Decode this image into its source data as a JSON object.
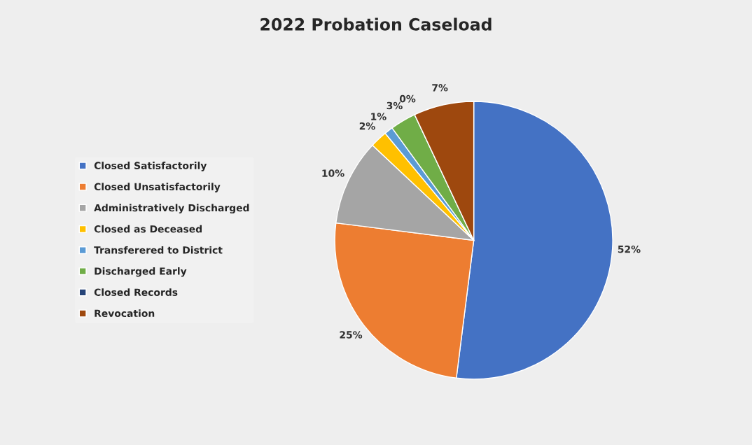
{
  "chart_data": {
    "type": "pie",
    "title": "2022 Probation Caseload",
    "categories": [
      "Closed Satisfactorily",
      "Closed Unsatisfactorily",
      "Administratively Discharged",
      "Closed as Deceased",
      "Transferered to District",
      "Discharged Early",
      "Closed Records",
      "Revocation"
    ],
    "values": [
      52,
      25,
      10,
      2,
      1,
      3,
      0,
      7
    ],
    "value_labels": [
      "52%",
      "25%",
      "10%",
      "2%",
      "1%",
      "3%",
      "0%",
      "7%"
    ],
    "colors": [
      "#4472c4",
      "#ed7d31",
      "#a5a5a5",
      "#ffc000",
      "#5b9bd5",
      "#70ad47",
      "#264478",
      "#9e480e"
    ],
    "legend": "left"
  }
}
